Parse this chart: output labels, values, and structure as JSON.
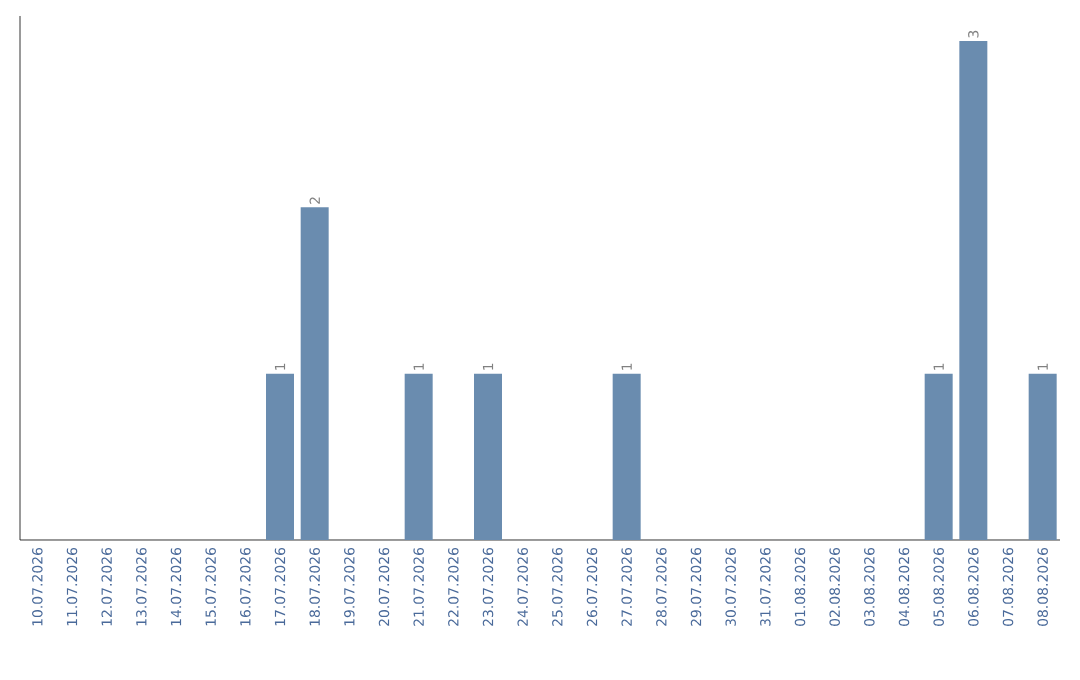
{
  "chart_data": {
    "type": "bar",
    "categories": [
      "10.07.2026",
      "11.07.2026",
      "12.07.2026",
      "13.07.2026",
      "14.07.2026",
      "15.07.2026",
      "16.07.2026",
      "17.07.2026",
      "18.07.2026",
      "19.07.2026",
      "20.07.2026",
      "21.07.2026",
      "22.07.2026",
      "23.07.2026",
      "24.07.2026",
      "25.07.2026",
      "26.07.2026",
      "27.07.2026",
      "28.07.2026",
      "29.07.2026",
      "30.07.2026",
      "31.07.2026",
      "01.08.2026",
      "02.08.2026",
      "03.08.2026",
      "04.08.2026",
      "05.08.2026",
      "06.08.2026",
      "07.08.2026",
      "08.08.2026"
    ],
    "values": [
      0,
      0,
      0,
      0,
      0,
      0,
      0,
      1,
      2,
      0,
      0,
      1,
      0,
      1,
      0,
      0,
      0,
      1,
      0,
      0,
      0,
      0,
      0,
      0,
      0,
      0,
      1,
      3,
      0,
      1
    ],
    "value_labels": [
      null,
      null,
      null,
      null,
      null,
      null,
      null,
      "1",
      "2",
      null,
      null,
      "1",
      null,
      "1",
      null,
      null,
      null,
      "1",
      null,
      null,
      null,
      null,
      null,
      null,
      null,
      null,
      "1",
      "3",
      null,
      "1"
    ],
    "color": "#6a8caf",
    "tick_labels": "x"
  }
}
